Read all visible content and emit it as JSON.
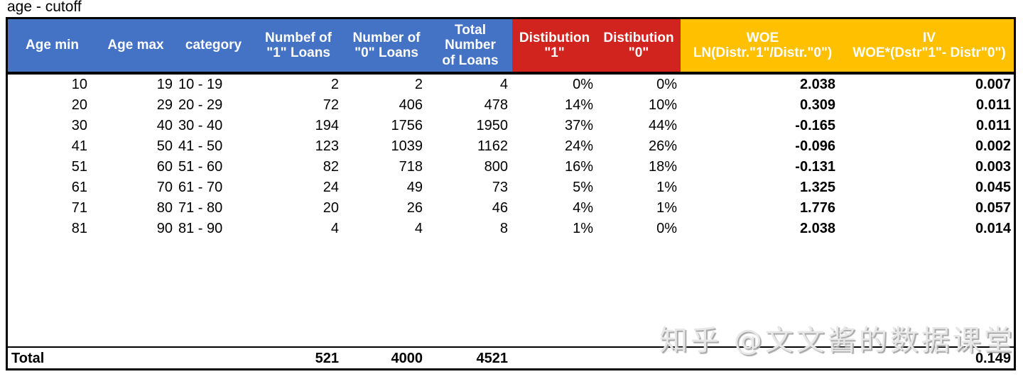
{
  "title": "age - cutoff",
  "colors": {
    "header_blue": "#4472C4",
    "header_red": "#D2241F",
    "header_orange": "#FFC000",
    "border": "#000000",
    "watermark_gray": "#E7E7E7"
  },
  "watermark": "知乎 @文文酱的数据课堂",
  "table": {
    "headers": [
      {
        "label": "Age min",
        "group": "blue"
      },
      {
        "label": "Age max",
        "group": "blue"
      },
      {
        "label": "category",
        "group": "blue"
      },
      {
        "label": "Numbef of\n\"1\" Loans",
        "group": "blue"
      },
      {
        "label": "Number of\n\"0\" Loans",
        "group": "blue"
      },
      {
        "label": "Total\nNumber\nof Loans",
        "group": "blue"
      },
      {
        "label": "Distibution\n\"1\"",
        "group": "red"
      },
      {
        "label": "Distibution\n\"0\"",
        "group": "red"
      },
      {
        "label": "WOE\nLN(Distr.\"1\"/Distr.\"0\")",
        "group": "orange"
      },
      {
        "label": "IV\nWOE*(Dstr\"1\"- Distr\"0\")",
        "group": "orange"
      }
    ],
    "column_names": [
      "age-min",
      "age-max",
      "category",
      "number-of-1-loans",
      "number-of-0-loans",
      "total-number-of-loans",
      "distribution-1",
      "distribution-0",
      "woe",
      "iv"
    ],
    "rows": [
      [
        "10",
        "19",
        "10 - 19",
        "2",
        "2",
        "4",
        "0%",
        "0%",
        "2.038",
        "0.007"
      ],
      [
        "20",
        "29",
        "20 - 29",
        "72",
        "406",
        "478",
        "14%",
        "10%",
        "0.309",
        "0.011"
      ],
      [
        "30",
        "40",
        "30 - 40",
        "194",
        "1756",
        "1950",
        "37%",
        "44%",
        "-0.165",
        "0.011"
      ],
      [
        "41",
        "50",
        "41 - 50",
        "123",
        "1039",
        "1162",
        "24%",
        "26%",
        "-0.096",
        "0.002"
      ],
      [
        "51",
        "60",
        "51 - 60",
        "82",
        "718",
        "800",
        "16%",
        "18%",
        "-0.131",
        "0.003"
      ],
      [
        "61",
        "70",
        "61 - 70",
        "24",
        "49",
        "73",
        "5%",
        "1%",
        "1.325",
        "0.045"
      ],
      [
        "71",
        "80",
        "71 - 80",
        "20",
        "26",
        "46",
        "4%",
        "1%",
        "1.776",
        "0.057"
      ],
      [
        "81",
        "90",
        "81 - 90",
        "4",
        "4",
        "8",
        "1%",
        "0%",
        "2.038",
        "0.014"
      ]
    ],
    "total": [
      "Total",
      "",
      "",
      "521",
      "4000",
      "4521",
      "",
      "",
      "",
      "0.149"
    ]
  }
}
